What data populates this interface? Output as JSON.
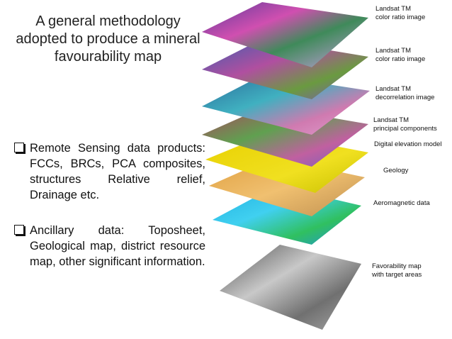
{
  "title": {
    "lines": [
      "A general methodology",
      "adopted to produce a mineral",
      "favourability map"
    ]
  },
  "bullets": [
    "Remote Sensing data products: FCCs, BRCs, PCA composites, structures Relative relief, Drainage etc.",
    "Ancillary data: Toposheet, Geological map, district resource map, other significant information."
  ],
  "layers": [
    {
      "lines": [
        "Landsat TM",
        "color ratio image"
      ]
    },
    {
      "lines": [
        "Landsat TM",
        "color ratio image"
      ]
    },
    {
      "lines": [
        "Landsat TM",
        "decorrelation image"
      ]
    },
    {
      "lines": [
        "Landsat TM",
        "principal components"
      ]
    },
    {
      "lines": [
        "Digital elevation model"
      ]
    },
    {
      "lines": [
        "Geology"
      ]
    },
    {
      "lines": [
        "Aeromagnetic data"
      ]
    },
    {
      "lines": [
        "Favorability map",
        "with target areas"
      ]
    }
  ]
}
